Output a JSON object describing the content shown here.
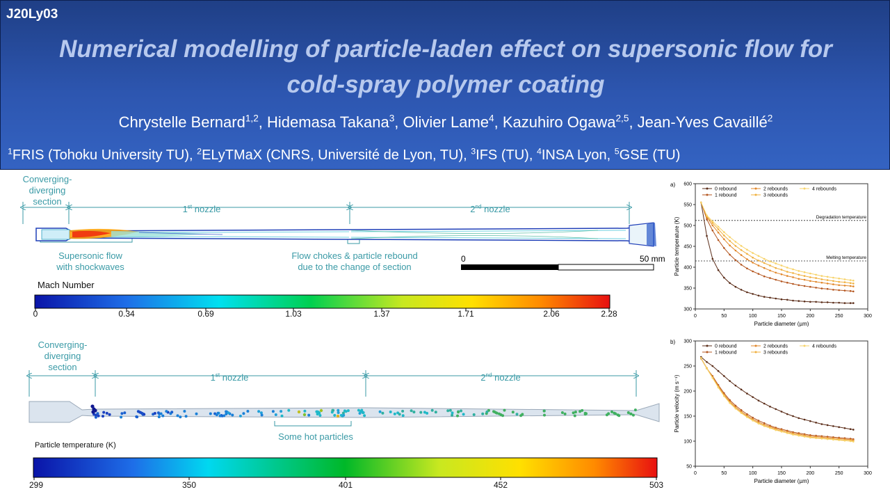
{
  "poster_id": "J20Ly03",
  "title_line1": "Numerical modelling of particle-laden effect on supersonic flow for",
  "title_line2": "cold-spray polymer coating",
  "authors": [
    {
      "name": "Chrystelle Bernard",
      "sup": "1,2",
      "sep": ", "
    },
    {
      "name": "Hidemasa Takana",
      "sup": "3",
      "sep": ", "
    },
    {
      "name": "Olivier Lame",
      "sup": "4",
      "sep": ", "
    },
    {
      "name": "Kazuhiro Ogawa",
      "sup": "2,5",
      "sep": ", "
    },
    {
      "name": "Jean-Yves Cavaillé",
      "sup": "2",
      "sep": ""
    }
  ],
  "affiliations": [
    {
      "sup": "1",
      "text": "FRIS (Tohoku University TU)",
      "sep": ", "
    },
    {
      "sup": "2",
      "text": "ELyTMaX (CNRS, Université de Lyon, TU)",
      "sep": ", "
    },
    {
      "sup": "3",
      "text": "IFS (TU)",
      "sep": ", "
    },
    {
      "sup": "4",
      "text": "INSA Lyon",
      "sep": ", "
    },
    {
      "sup": "5",
      "text": "GSE (TU)",
      "sep": ""
    }
  ],
  "mach_panel": {
    "converging_label": "Converging-\ndiverging\nsection",
    "nozzle1_label": {
      "pre": "1",
      "sup": "st",
      "post": " nozzle"
    },
    "nozzle2_label": {
      "pre": "2",
      "sup": "nd",
      "post": " nozzle"
    },
    "supersonic_label": "Supersonic flow\nwith shockwaves",
    "choke_label": "Flow chokes & particle rebound\ndue to the change of section",
    "scale_start": "0",
    "scale_end": "50 mm",
    "colorbar_title": "Mach Number",
    "colorbar_ticks": [
      "0",
      "0.34",
      "0.69",
      "1.03",
      "1.37",
      "1.71",
      "2.06",
      "2.28"
    ]
  },
  "particle_panel": {
    "converging_label": "Converging-\ndiverging\nsection",
    "nozzle1_label": {
      "pre": "1",
      "sup": "st",
      "post": " nozzle"
    },
    "nozzle2_label": {
      "pre": "2",
      "sup": "nd",
      "post": " nozzle"
    },
    "hot_label": "Some hot particles",
    "colorbar_title": "Particle temperature (K)",
    "colorbar_ticks": [
      "299",
      "350",
      "401",
      "452",
      "503"
    ]
  },
  "colors": {
    "teal_label": "#3a9aa6",
    "banner": "#2d56b0",
    "title": "#b7c9ee"
  },
  "chart_data": [
    {
      "panel_label": "a)",
      "type": "line",
      "xlabel": "Particle diameter (µm)",
      "ylabel": "Particle temperature (K)",
      "xlim": [
        0,
        300
      ],
      "ylim": [
        300,
        600
      ],
      "xticks": [
        0,
        50,
        100,
        150,
        200,
        250,
        300
      ],
      "yticks": [
        300,
        350,
        400,
        450,
        500,
        550,
        600
      ],
      "hlines": [
        {
          "y": 512,
          "label": "Degradation temperature"
        },
        {
          "y": 415,
          "label": "Melting temperature"
        }
      ],
      "x": [
        10,
        20,
        30,
        40,
        50,
        60,
        70,
        80,
        90,
        100,
        110,
        120,
        130,
        140,
        150,
        160,
        170,
        180,
        190,
        200,
        210,
        220,
        230,
        240,
        250,
        260,
        270,
        275
      ],
      "series": [
        {
          "name": "0 rebound",
          "color": "#5a2c18",
          "values": [
            555,
            475,
            420,
            393,
            375,
            362,
            353,
            346,
            340,
            336,
            332,
            329,
            327,
            325,
            323,
            322,
            320,
            319,
            318,
            317,
            317,
            316,
            316,
            315,
            315,
            314,
            314,
            314
          ]
        },
        {
          "name": "1 rebound",
          "color": "#b4561f",
          "values": [
            555,
            515,
            488,
            465,
            446,
            430,
            417,
            406,
            397,
            390,
            384,
            378,
            374,
            370,
            366,
            363,
            360,
            357,
            355,
            353,
            351,
            349,
            348,
            346,
            345,
            344,
            343,
            342
          ]
        },
        {
          "name": "2 rebounds",
          "color": "#e1872a",
          "values": [
            555,
            520,
            500,
            483,
            467,
            452,
            440,
            429,
            419,
            411,
            404,
            398,
            392,
            387,
            383,
            379,
            376,
            372,
            370,
            367,
            365,
            363,
            361,
            359,
            357,
            356,
            355,
            354
          ]
        },
        {
          "name": "3 rebounds",
          "color": "#f0b03e",
          "values": [
            555,
            522,
            506,
            491,
            476,
            463,
            451,
            441,
            432,
            423,
            416,
            410,
            404,
            398,
            394,
            389,
            386,
            382,
            379,
            376,
            374,
            371,
            369,
            367,
            365,
            364,
            362,
            361
          ]
        },
        {
          "name": "4 rebounds",
          "color": "#f7d36a",
          "values": [
            555,
            524,
            510,
            497,
            484,
            472,
            461,
            451,
            442,
            434,
            427,
            420,
            414,
            409,
            404,
            399,
            395,
            391,
            388,
            385,
            382,
            379,
            377,
            375,
            373,
            371,
            369,
            368
          ]
        }
      ],
      "legend": "top-right"
    },
    {
      "panel_label": "b)",
      "type": "line",
      "xlabel": "Particle diameter (µm)",
      "ylabel": "Particle velocity (m s⁻¹)",
      "xlim": [
        0,
        300
      ],
      "ylim": [
        50,
        300
      ],
      "xticks": [
        0,
        50,
        100,
        150,
        200,
        250,
        300
      ],
      "yticks": [
        50,
        100,
        150,
        200,
        250,
        300
      ],
      "x": [
        10,
        20,
        30,
        40,
        50,
        60,
        70,
        80,
        90,
        100,
        110,
        120,
        130,
        140,
        150,
        160,
        170,
        180,
        190,
        200,
        210,
        220,
        230,
        240,
        250,
        260,
        270,
        275
      ],
      "series": [
        {
          "name": "0 rebound",
          "color": "#5a2c18",
          "values": [
            268,
            258,
            250,
            240,
            230,
            220,
            211,
            203,
            195,
            188,
            181,
            175,
            169,
            164,
            159,
            154,
            150,
            146,
            143,
            140,
            137,
            134,
            132,
            130,
            128,
            126,
            124,
            123
          ]
        },
        {
          "name": "1 rebound",
          "color": "#b4561f",
          "values": [
            265,
            245,
            230,
            212,
            196,
            182,
            171,
            162,
            154,
            147,
            141,
            136,
            131,
            127,
            124,
            121,
            118,
            116,
            114,
            112,
            111,
            110,
            109,
            108,
            107,
            106,
            105,
            104
          ]
        },
        {
          "name": "2 rebounds",
          "color": "#e1872a",
          "values": [
            266,
            246,
            228,
            210,
            193,
            179,
            168,
            159,
            151,
            144,
            138,
            133,
            129,
            125,
            122,
            119,
            116,
            114,
            112,
            110,
            109,
            108,
            107,
            106,
            105,
            104,
            103,
            102
          ]
        },
        {
          "name": "3 rebounds",
          "color": "#f0b03e",
          "values": [
            266,
            246,
            227,
            208,
            191,
            177,
            166,
            157,
            149,
            142,
            136,
            131,
            127,
            123,
            120,
            117,
            114,
            112,
            110,
            108,
            107,
            106,
            105,
            104,
            103,
            102,
            101,
            100
          ]
        },
        {
          "name": "4 rebounds",
          "color": "#f7d36a",
          "values": [
            266,
            245,
            226,
            207,
            190,
            176,
            165,
            156,
            148,
            141,
            135,
            130,
            126,
            122,
            119,
            116,
            113,
            111,
            109,
            107,
            106,
            105,
            104,
            103,
            102,
            101,
            100,
            99
          ]
        }
      ],
      "legend": "top-right"
    }
  ]
}
